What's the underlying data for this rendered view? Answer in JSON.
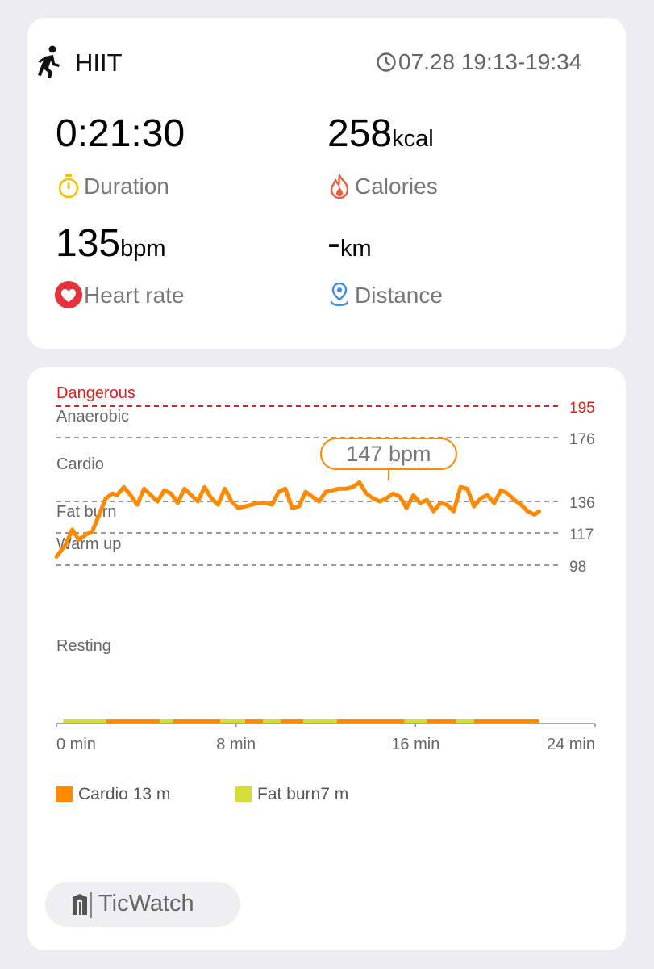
{
  "workout": {
    "title": "HIIT",
    "time_range": "07.28 19:13-19:34"
  },
  "stats": {
    "duration": {
      "value": "0:21:30",
      "unit": "",
      "label": "Duration"
    },
    "calories": {
      "value": "258",
      "unit": "kcal",
      "label": "Calories"
    },
    "heart_rate": {
      "value": "135",
      "unit": "bpm",
      "label": "Heart rate"
    },
    "distance": {
      "value": "-",
      "unit": "km",
      "label": "Distance"
    }
  },
  "icons": {
    "workout": "running-person-icon",
    "time": "clock-icon",
    "duration": "stopwatch-icon",
    "calories": "flame-icon",
    "heart_rate": "heart-icon",
    "distance": "location-pin-icon"
  },
  "colors": {
    "danger": "#e02020",
    "cardio": "#ff8a00",
    "fat_burn": "#d4dc3a",
    "stopwatch": "#f2c200",
    "flame": "#f25a3c",
    "heart": "#e5323c",
    "pin": "#3a8be8"
  },
  "chart_data": {
    "type": "line",
    "x_unit": "min",
    "x_ticks": [
      "0 min",
      "8 min",
      "16 min",
      "24 min"
    ],
    "xlim": [
      0,
      24
    ],
    "zones": [
      {
        "name": "Dangerous",
        "threshold": 195
      },
      {
        "name": "Anaerobic",
        "threshold": 176
      },
      {
        "name": "Cardio",
        "threshold": 136
      },
      {
        "name": "Fat burn",
        "threshold": 117
      },
      {
        "name": "Warm up",
        "threshold": 98
      },
      {
        "name": "Resting",
        "threshold": null
      }
    ],
    "callout": {
      "text": "147 bpm",
      "x": 14.8,
      "y": 147
    },
    "series": [
      {
        "x": [
          0,
          0.4,
          0.7,
          1.0,
          1.3,
          1.6,
          1.9,
          2.2,
          2.5,
          2.7,
          3.0,
          3.3,
          3.6,
          3.9,
          4.2,
          4.5,
          4.8,
          5.1,
          5.4,
          5.7,
          6.0,
          6.3,
          6.6,
          6.9,
          7.2,
          7.5,
          7.8,
          8.1,
          8.4,
          8.7,
          9.0,
          9.3,
          9.6,
          9.9,
          10.2,
          10.5,
          10.8,
          11.1,
          11.4,
          11.7,
          12.0,
          12.3,
          12.6,
          12.9,
          13.2,
          13.5,
          13.8,
          14.1,
          14.4,
          14.7,
          15.0,
          15.3,
          15.6,
          15.9,
          16.2,
          16.5,
          16.8,
          17.1,
          17.4,
          17.7,
          18.0,
          18.3,
          18.6,
          18.9,
          19.2,
          19.5,
          19.8,
          20.1,
          20.4,
          20.7,
          21.0,
          21.3,
          21.5
        ],
        "y": [
          103,
          110,
          119,
          113,
          116,
          118,
          128,
          138,
          141,
          140,
          145,
          140,
          134,
          144,
          140,
          136,
          143,
          141,
          135,
          144,
          140,
          136,
          145,
          138,
          134,
          144,
          136,
          132,
          133,
          134,
          135,
          135,
          134,
          142,
          144,
          132,
          133,
          142,
          139,
          136,
          142,
          143,
          144,
          144,
          145,
          148,
          141,
          138,
          136,
          138,
          141,
          139,
          132,
          140,
          135,
          137,
          130,
          135,
          134,
          130,
          145,
          144,
          133,
          138,
          140,
          135,
          143,
          141,
          137,
          134,
          130,
          128,
          130
        ]
      }
    ],
    "zone_bar": {
      "segments": [
        {
          "zone": "Fat burn",
          "from": 0.3,
          "to": 2.2
        },
        {
          "zone": "Cardio",
          "from": 2.2,
          "to": 4.6
        },
        {
          "zone": "Fat burn",
          "from": 4.6,
          "to": 5.2
        },
        {
          "zone": "Cardio",
          "from": 5.2,
          "to": 7.3
        },
        {
          "zone": "Fat burn",
          "from": 7.3,
          "to": 8.4
        },
        {
          "zone": "Cardio",
          "from": 8.4,
          "to": 9.2
        },
        {
          "zone": "Fat burn",
          "from": 9.2,
          "to": 10.0
        },
        {
          "zone": "Cardio",
          "from": 10.0,
          "to": 11.0
        },
        {
          "zone": "Fat burn",
          "from": 11.0,
          "to": 12.5
        },
        {
          "zone": "Cardio",
          "from": 12.5,
          "to": 15.5
        },
        {
          "zone": "Fat burn",
          "from": 15.5,
          "to": 16.5
        },
        {
          "zone": "Cardio",
          "from": 16.5,
          "to": 17.8
        },
        {
          "zone": "Fat burn",
          "from": 17.8,
          "to": 18.6
        },
        {
          "zone": "Cardio",
          "from": 18.6,
          "to": 21.5
        }
      ]
    },
    "legend": [
      {
        "zone": "Cardio",
        "label": "Cardio 13 m"
      },
      {
        "zone": "Fat burn",
        "label": "Fat burn7 m"
      }
    ]
  },
  "footer": {
    "brand": "TicWatch",
    "brand_icon": "ticwatch-logo-icon"
  }
}
